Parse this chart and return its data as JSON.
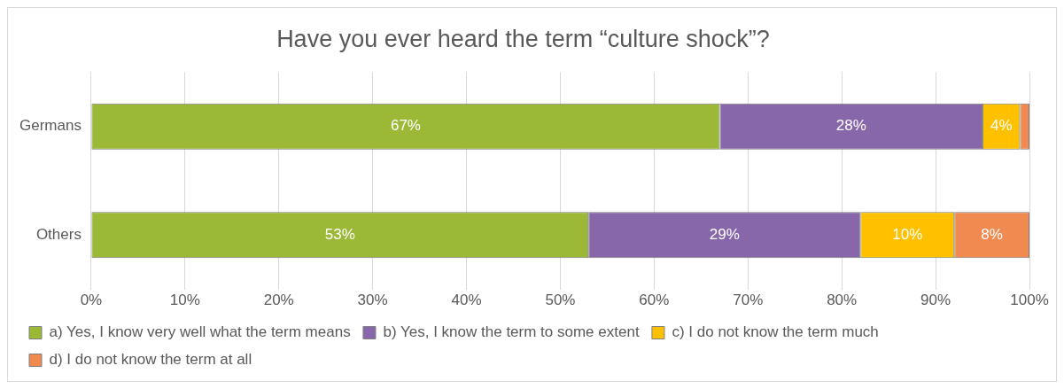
{
  "chart_data": {
    "type": "bar",
    "orientation": "horizontal",
    "stacked": true,
    "title": "Have you ever heard the term “culture shock”?",
    "categories": [
      "Germans",
      "Others"
    ],
    "series": [
      {
        "name": "a) Yes, I know very well what the term means",
        "color": "#9bb837",
        "values": [
          67,
          53
        ],
        "value_labels": [
          "67%",
          "53%"
        ]
      },
      {
        "name": "b) Yes, I know the term to some extent",
        "color": "#8767aa",
        "values": [
          28,
          29
        ],
        "value_labels": [
          "28%",
          "29%"
        ]
      },
      {
        "name": "c) I do not know the term much",
        "color": "#ffc000",
        "values": [
          4,
          10
        ],
        "value_labels": [
          "4%",
          "10%"
        ]
      },
      {
        "name": "d) I do not know the term at all",
        "color": "#f08a50",
        "values": [
          1,
          8
        ],
        "value_labels": [
          null,
          "8%"
        ]
      }
    ],
    "xlim": [
      0,
      100
    ],
    "xticks": [
      {
        "value": 0,
        "label": "0%"
      },
      {
        "value": 10,
        "label": "10%"
      },
      {
        "value": 20,
        "label": "20%"
      },
      {
        "value": 30,
        "label": "30%"
      },
      {
        "value": 40,
        "label": "40%"
      },
      {
        "value": 50,
        "label": "50%"
      },
      {
        "value": 60,
        "label": "60%"
      },
      {
        "value": 70,
        "label": "70%"
      },
      {
        "value": 80,
        "label": "80%"
      },
      {
        "value": 90,
        "label": "90%"
      },
      {
        "value": 100,
        "label": "100%"
      }
    ],
    "grid": "x",
    "legend": "bottom"
  }
}
